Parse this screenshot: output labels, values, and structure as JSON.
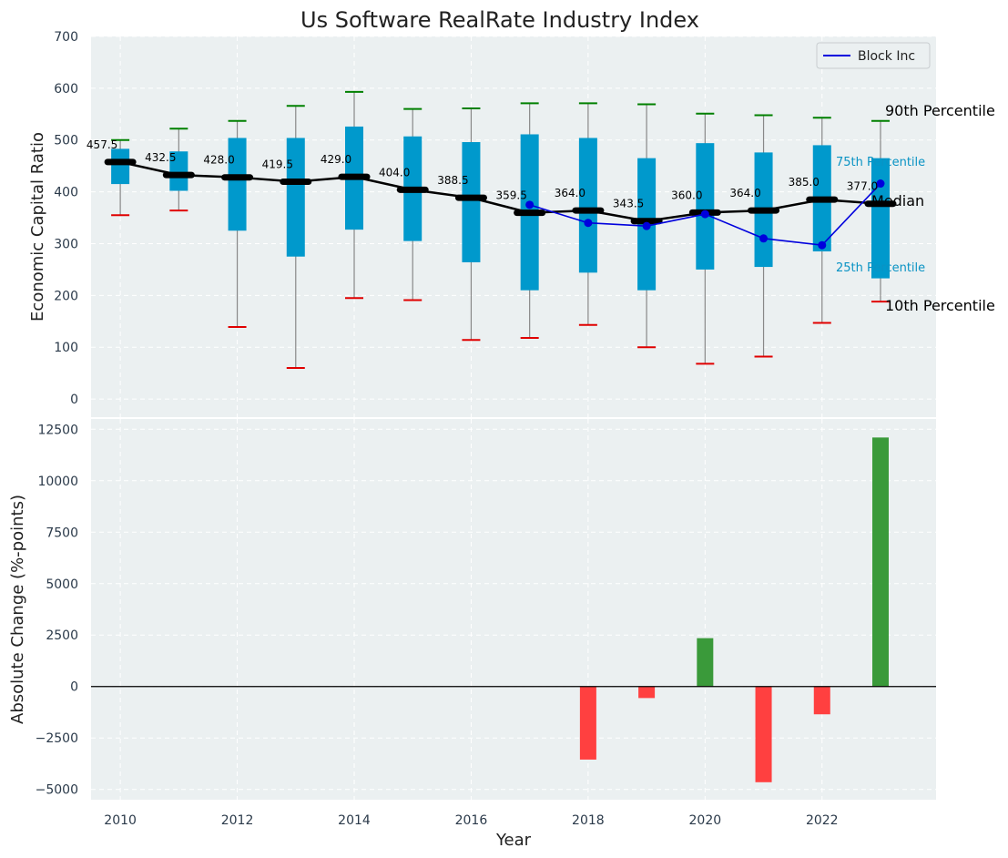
{
  "chart_data": [
    {
      "type": "box",
      "title": "Us Software RealRate Industry Index",
      "xlabel": "",
      "ylabel": "Economic Capital Ratio",
      "ylim": [
        -35,
        700
      ],
      "yticks": [
        0,
        100,
        200,
        300,
        400,
        500,
        600,
        700
      ],
      "grid": true,
      "legend": {
        "placement": "top-right",
        "entries": [
          "Block Inc"
        ]
      },
      "years": [
        2010,
        2011,
        2012,
        2013,
        2014,
        2015,
        2016,
        2017,
        2018,
        2019,
        2020,
        2021,
        2022,
        2023
      ],
      "p10": [
        355,
        364,
        139,
        60,
        195,
        191,
        114,
        118,
        143,
        100,
        68,
        82,
        147,
        188
      ],
      "p25": [
        415,
        402,
        325,
        275,
        327,
        305,
        264,
        210,
        244,
        210,
        250,
        255,
        285,
        233
      ],
      "median": [
        457.5,
        432.5,
        428.0,
        419.5,
        429.0,
        404.0,
        388.5,
        359.5,
        364.0,
        343.5,
        360.0,
        364.0,
        385.0,
        377.0
      ],
      "median_labels": [
        "457.5",
        "432.5",
        "428.0",
        "419.5",
        "429.0",
        "404.0",
        "388.5",
        "359.5",
        "364.0",
        "343.5",
        "360.0",
        "364.0",
        "385.0",
        "377.0"
      ],
      "p75": [
        483,
        478,
        504,
        504,
        526,
        507,
        496,
        511,
        504,
        465,
        494,
        476,
        490,
        465
      ],
      "p90": [
        500,
        522,
        537,
        566,
        593,
        560,
        561,
        571,
        571,
        569,
        551,
        548,
        543,
        537
      ],
      "company": {
        "name": "Block Inc",
        "years": [
          2017,
          2018,
          2019,
          2020,
          2021,
          2022,
          2023
        ],
        "values": [
          375,
          340,
          334,
          357,
          310,
          297,
          416
        ]
      },
      "annotations": {
        "p90": "90th Percentile",
        "p75": "75th Percentile",
        "median": "Median",
        "p25": "25th Percentile",
        "p10": "10th Percentile"
      },
      "colors": {
        "box": "#0099cc",
        "median": "#000000",
        "company": "#0000dd",
        "p90_cap": "#008000",
        "p10_cap": "#e00000",
        "background": "#ebf0f1"
      }
    },
    {
      "type": "bar",
      "xlabel": "Year",
      "ylabel": "Absolute Change (%-points)",
      "ylim": [
        -5500,
        13000
      ],
      "yticks": [
        -5000,
        -2500,
        0,
        2500,
        5000,
        7500,
        10000,
        12500
      ],
      "ytick_labels": [
        "−5000",
        "−2500",
        "0",
        "2500",
        "5000",
        "7500",
        "10000",
        "12500"
      ],
      "xticks": [
        2010,
        2012,
        2014,
        2016,
        2018,
        2020,
        2022
      ],
      "xlim": [
        2009.5,
        2023.95
      ],
      "grid": true,
      "years": [
        2018,
        2019,
        2020,
        2021,
        2022,
        2023
      ],
      "values": [
        -3550,
        -560,
        2350,
        -4650,
        -1350,
        12100
      ],
      "colors": {
        "positive": "#3a9a3a",
        "negative": "#ff4040"
      }
    }
  ]
}
